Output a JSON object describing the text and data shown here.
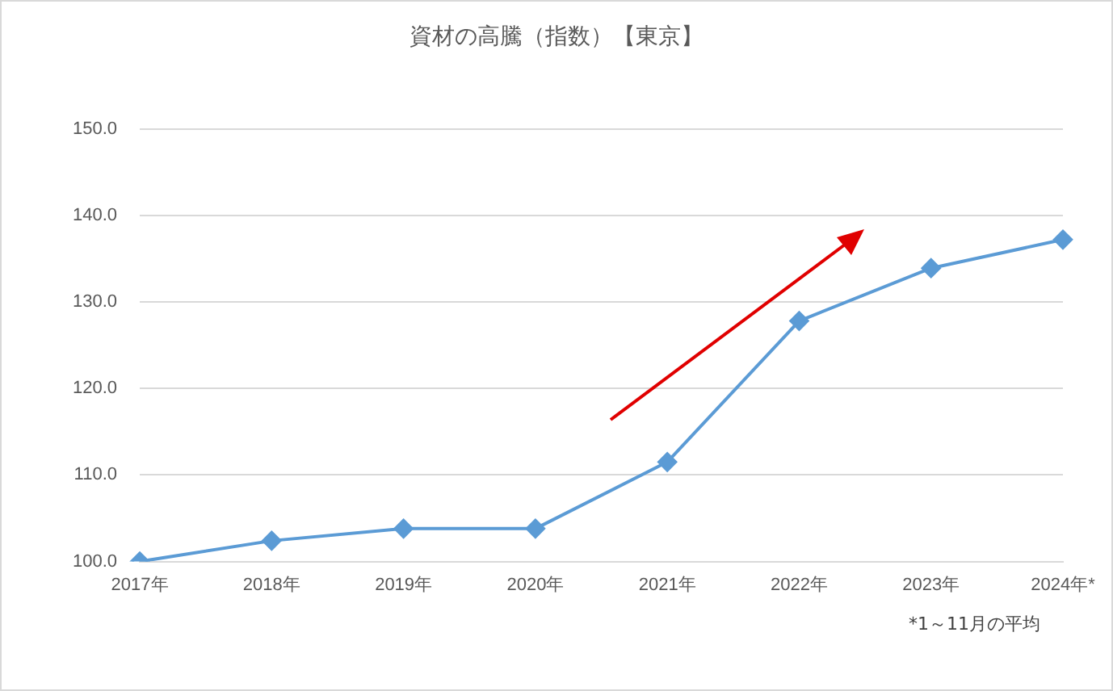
{
  "chart_data": {
    "type": "line",
    "title": "資材の高騰（指数）【東京】",
    "categories": [
      "2017年",
      "2018年",
      "2019年",
      "2020年",
      "2021年",
      "2022年",
      "2023年",
      "2024年*"
    ],
    "series": [
      {
        "color": "#5b9bd5",
        "values": [
          100.0,
          102.4,
          103.8,
          103.8,
          111.5,
          127.8,
          133.9,
          137.2
        ]
      }
    ],
    "ylim": [
      100,
      150
    ],
    "yticks": [
      {
        "value": 100,
        "label": "100.0"
      },
      {
        "value": 110,
        "label": "110.0"
      },
      {
        "value": 120,
        "label": "120.0"
      },
      {
        "value": 130,
        "label": "130.0"
      },
      {
        "value": 140,
        "label": "140.0"
      },
      {
        "value": 150,
        "label": "150.0"
      }
    ],
    "grid": "y",
    "legend": false,
    "marker": "diamond",
    "line_style": "solid",
    "annotations": [
      "*1～11月の平均"
    ]
  }
}
